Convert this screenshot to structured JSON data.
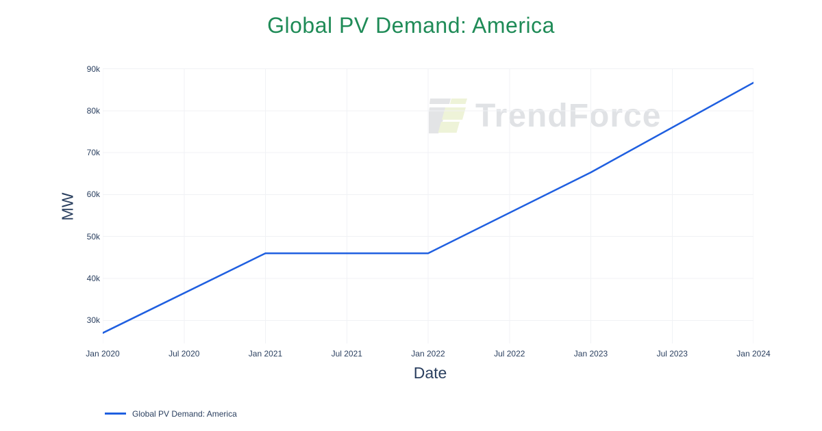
{
  "title": {
    "text": "Global PV Demand: America",
    "color": "#1f8b57"
  },
  "watermark": {
    "text": "TrendForce",
    "logo_gray": "#e3e4e6",
    "logo_green": "#eef3d8"
  },
  "chart_data": {
    "type": "line",
    "title": "Global PV Demand: America",
    "xlabel": "Date",
    "ylabel": "MW",
    "categories": [
      "Jan 2020",
      "Jan 2021",
      "Jan 2022",
      "Jan 2023",
      "Jan 2024"
    ],
    "series": [
      {
        "name": "Global PV Demand: America",
        "color": "#1f5fe0",
        "values": [
          27000,
          46000,
          46000,
          65300,
          86700
        ]
      }
    ],
    "x_tick_labels": [
      "Jan 2020",
      "Jul 2020",
      "Jan 2021",
      "Jul 2021",
      "Jan 2022",
      "Jul 2022",
      "Jan 2023",
      "Jul 2023",
      "Jan 2024"
    ],
    "y_tick_labels": [
      "30k",
      "40k",
      "50k",
      "60k",
      "70k",
      "80k",
      "90k"
    ],
    "y_tick_values": [
      30000,
      40000,
      50000,
      60000,
      70000,
      80000,
      90000
    ],
    "ylim": [
      24500,
      90100
    ],
    "grid": true,
    "grid_color": "#f0f2f5",
    "tick_color": "#2a3f5f",
    "background": "#ffffff",
    "legend_position": "bottom-left"
  }
}
